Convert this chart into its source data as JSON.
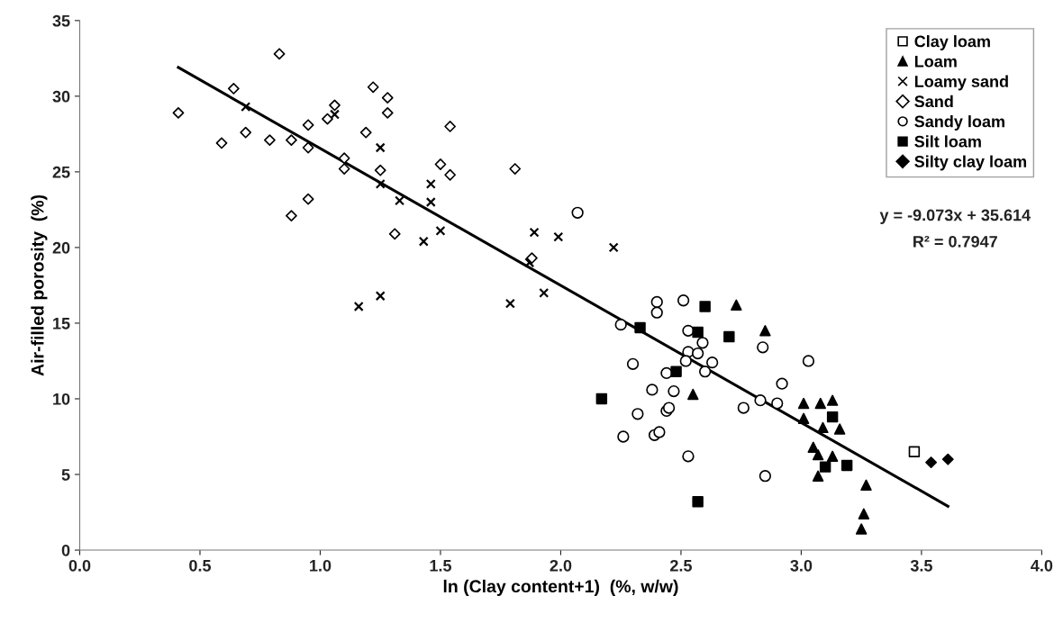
{
  "chart_data": {
    "type": "scatter",
    "xlabel": "ln (Clay content+1)  (%, w/w)",
    "ylabel": "Air-filled porosity  (%)",
    "xlim": [
      0.0,
      4.0
    ],
    "xticks": [
      {
        "value": 0,
        "label": "0.0"
      },
      0.5,
      {
        "value": 1,
        "label": "1.0"
      },
      1.5,
      {
        "value": 2,
        "label": "2.0"
      },
      2.5,
      {
        "value": 3,
        "label": "3.0"
      },
      3.5,
      {
        "value": 4,
        "label": "4.0"
      }
    ],
    "ylim": [
      0,
      35
    ],
    "yticks": [
      0,
      5,
      10,
      15,
      20,
      25,
      30,
      35
    ],
    "grid": false,
    "legend": "top right",
    "annotations": [
      "y = -9.073x + 35.614",
      "R² = 0.7947"
    ],
    "series": [
      {
        "name": "Clay loam",
        "marker": "square",
        "color": "#ffffff",
        "x": [
          3.47
        ],
        "values": [
          6.5
        ]
      },
      {
        "name": "Loam",
        "marker": "triangle",
        "color": "#000000",
        "x": [
          2.73,
          2.85,
          2.55,
          3.01,
          3.08,
          3.13,
          3.01,
          3.09,
          3.16,
          3.05,
          3.07,
          3.13,
          3.07,
          3.27,
          3.26,
          3.25
        ],
        "values": [
          16.2,
          14.5,
          10.3,
          9.7,
          9.7,
          9.9,
          8.7,
          8.1,
          8.0,
          6.8,
          6.3,
          6.2,
          4.9,
          4.3,
          2.4,
          1.4
        ]
      },
      {
        "name": "Loamy sand",
        "marker": "cross",
        "color": "#000000",
        "x": [
          0.69,
          1.06,
          1.25,
          1.25,
          1.33,
          1.46,
          1.46,
          1.5,
          1.43,
          1.25,
          1.16,
          1.89,
          1.99,
          2.22,
          1.87,
          1.93,
          1.79
        ],
        "values": [
          29.3,
          28.8,
          26.6,
          24.2,
          23.1,
          24.2,
          23.0,
          21.1,
          20.4,
          16.8,
          16.1,
          21.0,
          20.7,
          20.0,
          19.0,
          17.0,
          16.3
        ]
      },
      {
        "name": "Sand",
        "marker": "diamond",
        "color": "#ffffff",
        "x": [
          0.41,
          0.83,
          0.64,
          0.59,
          0.69,
          0.79,
          0.88,
          0.95,
          0.95,
          1.03,
          1.06,
          1.19,
          1.22,
          1.28,
          1.28,
          1.1,
          1.1,
          1.25,
          0.95,
          0.88,
          1.31,
          1.5,
          1.54,
          1.54,
          1.81,
          1.88
        ],
        "values": [
          28.9,
          32.8,
          30.5,
          26.9,
          27.6,
          27.1,
          27.1,
          28.1,
          26.6,
          28.5,
          29.4,
          27.6,
          30.6,
          29.9,
          28.9,
          25.9,
          25.2,
          25.1,
          23.2,
          22.1,
          20.9,
          25.5,
          28.0,
          24.8,
          25.2,
          19.3
        ]
      },
      {
        "name": "Sandy loam",
        "marker": "circle",
        "color": "#ffffff",
        "x": [
          2.07,
          2.4,
          2.4,
          2.25,
          2.51,
          2.53,
          2.59,
          2.53,
          2.57,
          2.52,
          2.63,
          2.6,
          2.3,
          2.44,
          2.38,
          2.47,
          2.32,
          2.44,
          2.45,
          2.26,
          2.39,
          2.41,
          2.53,
          2.84,
          3.03,
          2.92,
          2.83,
          2.9,
          2.76,
          2.85
        ],
        "values": [
          22.3,
          16.4,
          15.7,
          14.9,
          16.5,
          14.5,
          13.7,
          13.1,
          13.0,
          12.5,
          12.4,
          11.8,
          12.3,
          11.7,
          10.6,
          10.5,
          9.0,
          9.2,
          9.4,
          7.5,
          7.6,
          7.8,
          6.2,
          13.4,
          12.5,
          11.0,
          9.9,
          9.7,
          9.4,
          4.9
        ]
      },
      {
        "name": "Silt loam",
        "marker": "square",
        "color": "#000000",
        "x": [
          2.6,
          2.33,
          2.57,
          2.7,
          2.48,
          2.17,
          2.57,
          3.13,
          3.1,
          3.19
        ],
        "values": [
          16.1,
          14.7,
          14.4,
          14.1,
          11.8,
          10.0,
          3.2,
          8.8,
          5.5,
          5.6
        ]
      },
      {
        "name": "Silty clay loam",
        "marker": "diamond",
        "color": "#000000",
        "x": [
          3.54,
          3.61
        ],
        "values": [
          5.8,
          6.0
        ]
      },
      {
        "type": "line",
        "color": "#000000",
        "line_style": "solid",
        "x": [
          0.41,
          3.61
        ],
        "values": [
          31.9,
          2.9
        ]
      }
    ]
  }
}
